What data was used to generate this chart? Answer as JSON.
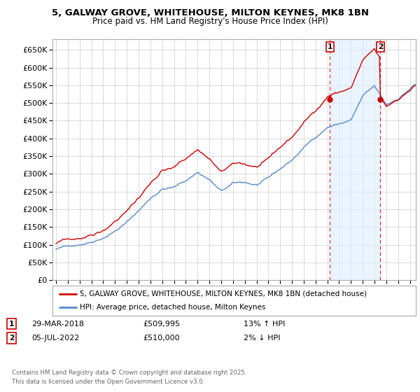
{
  "title_line1": "5, GALWAY GROVE, WHITEHOUSE, MILTON KEYNES, MK8 1BN",
  "title_line2": "Price paid vs. HM Land Registry's House Price Index (HPI)",
  "background_color": "#ffffff",
  "plot_bg_color": "#ffffff",
  "grid_color": "#cccccc",
  "line1_color": "#cc0000",
  "line2_color": "#5588cc",
  "fill_color": "#ddeeff",
  "ylim": [
    0,
    680000
  ],
  "sale1_date_label": "29-MAR-2018",
  "sale1_price": 509995,
  "sale1_hpi_pct": "13% ↑ HPI",
  "sale2_date_label": "05-JUL-2022",
  "sale2_price": 510000,
  "sale2_hpi_pct": "2% ↓ HPI",
  "legend_label1": "5, GALWAY GROVE, WHITEHOUSE, MILTON KEYNES, MK8 1BN (detached house)",
  "legend_label2": "HPI: Average price, detached house, Milton Keynes",
  "footer": "Contains HM Land Registry data © Crown copyright and database right 2025.\nThis data is licensed under the Open Government Licence v3.0.",
  "marker1_year": 2018.23,
  "marker1_price": 509995,
  "marker2_year": 2022.5,
  "marker2_price": 510000,
  "xlim_left": 1994.7,
  "xlim_right": 2025.5
}
